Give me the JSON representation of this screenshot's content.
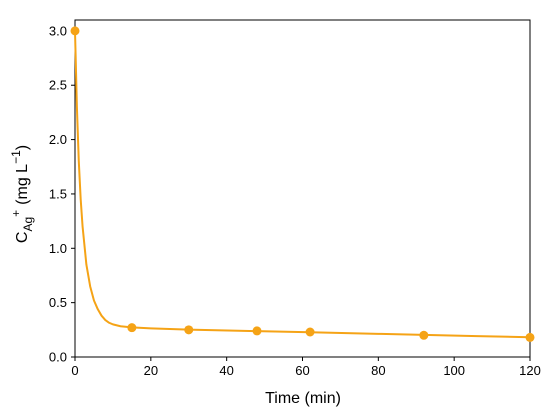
{
  "chart_data": {
    "type": "scatter",
    "title": "",
    "xlabel": "Time (min)",
    "ylabel": {
      "base": "C",
      "subscript": "Ag",
      "superscript": "+",
      "unit": "(mg L",
      "unit_superscript": "−1",
      "unit_close": ")"
    },
    "xlim": [
      0,
      120
    ],
    "ylim": [
      0.0,
      3.1
    ],
    "x_ticks": [
      0,
      20,
      40,
      60,
      80,
      100,
      120
    ],
    "x_tick_labels": [
      "0",
      "20",
      "40",
      "60",
      "80",
      "100",
      "120"
    ],
    "y_ticks": [
      0.0,
      0.5,
      1.0,
      1.5,
      2.0,
      2.5,
      3.0
    ],
    "y_tick_labels": [
      "0.0",
      "0.5",
      "1.0",
      "1.5",
      "2.0",
      "2.5",
      "3.0"
    ],
    "grid": false,
    "legend": "none",
    "color": "#F5A316",
    "series": [
      {
        "points": [
          {
            "x": 0,
            "y": 3.0
          },
          {
            "x": 15,
            "y": 0.27
          },
          {
            "x": 30,
            "y": 0.25
          },
          {
            "x": 48,
            "y": 0.24
          },
          {
            "x": 62,
            "y": 0.23
          },
          {
            "x": 92,
            "y": 0.2
          },
          {
            "x": 120,
            "y": 0.18
          }
        ]
      }
    ],
    "fit_curve": {
      "style": "line",
      "points": [
        {
          "x": 0,
          "y": 3.0
        },
        {
          "x": 0.5,
          "y": 2.3
        },
        {
          "x": 1,
          "y": 1.8
        },
        {
          "x": 1.5,
          "y": 1.45
        },
        {
          "x": 2,
          "y": 1.2
        },
        {
          "x": 3,
          "y": 0.85
        },
        {
          "x": 4,
          "y": 0.65
        },
        {
          "x": 5,
          "y": 0.52
        },
        {
          "x": 6,
          "y": 0.44
        },
        {
          "x": 7,
          "y": 0.38
        },
        {
          "x": 8,
          "y": 0.34
        },
        {
          "x": 9,
          "y": 0.315
        },
        {
          "x": 10,
          "y": 0.3
        },
        {
          "x": 12,
          "y": 0.283
        },
        {
          "x": 15,
          "y": 0.272
        },
        {
          "x": 20,
          "y": 0.263
        },
        {
          "x": 30,
          "y": 0.252
        },
        {
          "x": 48,
          "y": 0.238
        },
        {
          "x": 62,
          "y": 0.228
        },
        {
          "x": 80,
          "y": 0.213
        },
        {
          "x": 92,
          "y": 0.203
        },
        {
          "x": 106,
          "y": 0.192
        },
        {
          "x": 120,
          "y": 0.182
        }
      ]
    }
  }
}
